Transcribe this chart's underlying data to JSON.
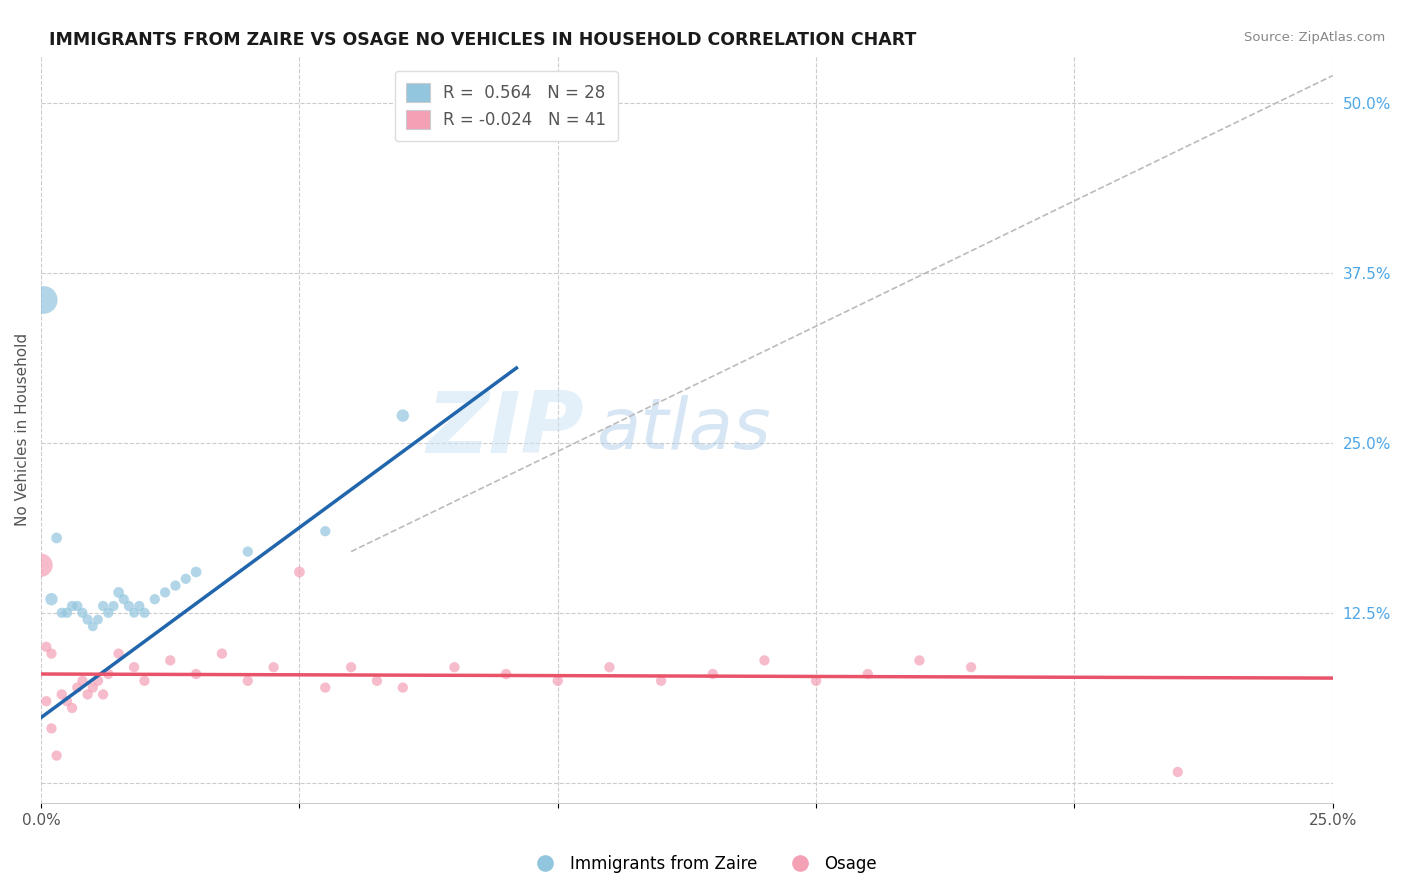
{
  "title": "IMMIGRANTS FROM ZAIRE VS OSAGE NO VEHICLES IN HOUSEHOLD CORRELATION CHART",
  "source": "Source: ZipAtlas.com",
  "ylabel": "No Vehicles in Household",
  "xlim": [
    0.0,
    0.25
  ],
  "ylim": [
    -0.015,
    0.535
  ],
  "blue_color": "#92c5de",
  "pink_color": "#f4a0b5",
  "blue_line_color": "#2166ac",
  "pink_line_color": "#e8536a",
  "dashed_line_color": "#bbbbbb",
  "watermark_zip": "ZIP",
  "watermark_atlas": "atlas",
  "blue_line": [
    [
      0.0,
      0.048
    ],
    [
      0.092,
      0.305
    ]
  ],
  "pink_line": [
    [
      0.0,
      0.08
    ],
    [
      0.25,
      0.077
    ]
  ],
  "diag_line": [
    [
      0.06,
      0.17
    ],
    [
      0.25,
      0.52
    ]
  ],
  "zaire_points": [
    [
      0.0005,
      0.355
    ],
    [
      0.002,
      0.135
    ],
    [
      0.003,
      0.18
    ],
    [
      0.004,
      0.125
    ],
    [
      0.005,
      0.125
    ],
    [
      0.006,
      0.13
    ],
    [
      0.007,
      0.13
    ],
    [
      0.008,
      0.125
    ],
    [
      0.009,
      0.12
    ],
    [
      0.01,
      0.115
    ],
    [
      0.011,
      0.12
    ],
    [
      0.012,
      0.13
    ],
    [
      0.013,
      0.125
    ],
    [
      0.014,
      0.13
    ],
    [
      0.015,
      0.14
    ],
    [
      0.016,
      0.135
    ],
    [
      0.017,
      0.13
    ],
    [
      0.018,
      0.125
    ],
    [
      0.019,
      0.13
    ],
    [
      0.02,
      0.125
    ],
    [
      0.022,
      0.135
    ],
    [
      0.024,
      0.14
    ],
    [
      0.026,
      0.145
    ],
    [
      0.028,
      0.15
    ],
    [
      0.03,
      0.155
    ],
    [
      0.04,
      0.17
    ],
    [
      0.055,
      0.185
    ],
    [
      0.07,
      0.27
    ]
  ],
  "zaire_sizes": [
    400,
    80,
    60,
    55,
    55,
    55,
    55,
    55,
    55,
    50,
    50,
    55,
    55,
    55,
    60,
    55,
    55,
    50,
    55,
    55,
    55,
    55,
    55,
    55,
    60,
    55,
    55,
    80
  ],
  "osage_points": [
    [
      0.001,
      0.06
    ],
    [
      0.002,
      0.04
    ],
    [
      0.003,
      0.02
    ],
    [
      0.004,
      0.065
    ],
    [
      0.005,
      0.06
    ],
    [
      0.006,
      0.055
    ],
    [
      0.007,
      0.07
    ],
    [
      0.008,
      0.075
    ],
    [
      0.009,
      0.065
    ],
    [
      0.01,
      0.07
    ],
    [
      0.011,
      0.075
    ],
    [
      0.012,
      0.065
    ],
    [
      0.013,
      0.08
    ],
    [
      0.015,
      0.095
    ],
    [
      0.018,
      0.085
    ],
    [
      0.02,
      0.075
    ],
    [
      0.025,
      0.09
    ],
    [
      0.03,
      0.08
    ],
    [
      0.035,
      0.095
    ],
    [
      0.04,
      0.075
    ],
    [
      0.045,
      0.085
    ],
    [
      0.05,
      0.155
    ],
    [
      0.055,
      0.07
    ],
    [
      0.06,
      0.085
    ],
    [
      0.065,
      0.075
    ],
    [
      0.07,
      0.07
    ],
    [
      0.08,
      0.085
    ],
    [
      0.09,
      0.08
    ],
    [
      0.1,
      0.075
    ],
    [
      0.11,
      0.085
    ],
    [
      0.12,
      0.075
    ],
    [
      0.13,
      0.08
    ],
    [
      0.14,
      0.09
    ],
    [
      0.15,
      0.075
    ],
    [
      0.16,
      0.08
    ],
    [
      0.17,
      0.09
    ],
    [
      0.18,
      0.085
    ],
    [
      0.0,
      0.16
    ],
    [
      0.001,
      0.1
    ],
    [
      0.002,
      0.095
    ],
    [
      0.22,
      0.008
    ]
  ],
  "osage_sizes": [
    55,
    55,
    55,
    55,
    55,
    55,
    55,
    55,
    55,
    55,
    55,
    55,
    55,
    55,
    55,
    55,
    55,
    55,
    55,
    55,
    55,
    60,
    55,
    55,
    55,
    55,
    55,
    55,
    55,
    55,
    55,
    55,
    55,
    55,
    55,
    55,
    55,
    280,
    55,
    55,
    55
  ]
}
